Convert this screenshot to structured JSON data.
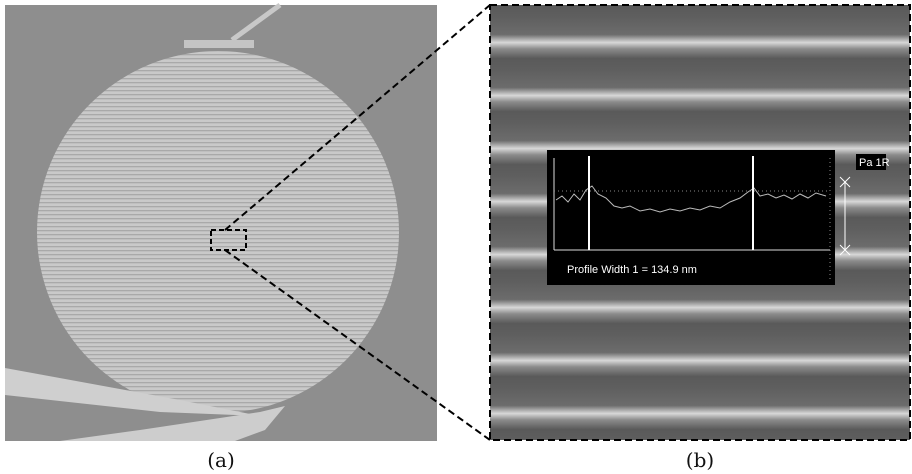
{
  "panels": [
    {
      "caption": "(a)"
    },
    {
      "caption": "(b)",
      "marker_label": "Pa 1R",
      "measurement": "Profile Width 1 = 134.9 nm"
    }
  ]
}
